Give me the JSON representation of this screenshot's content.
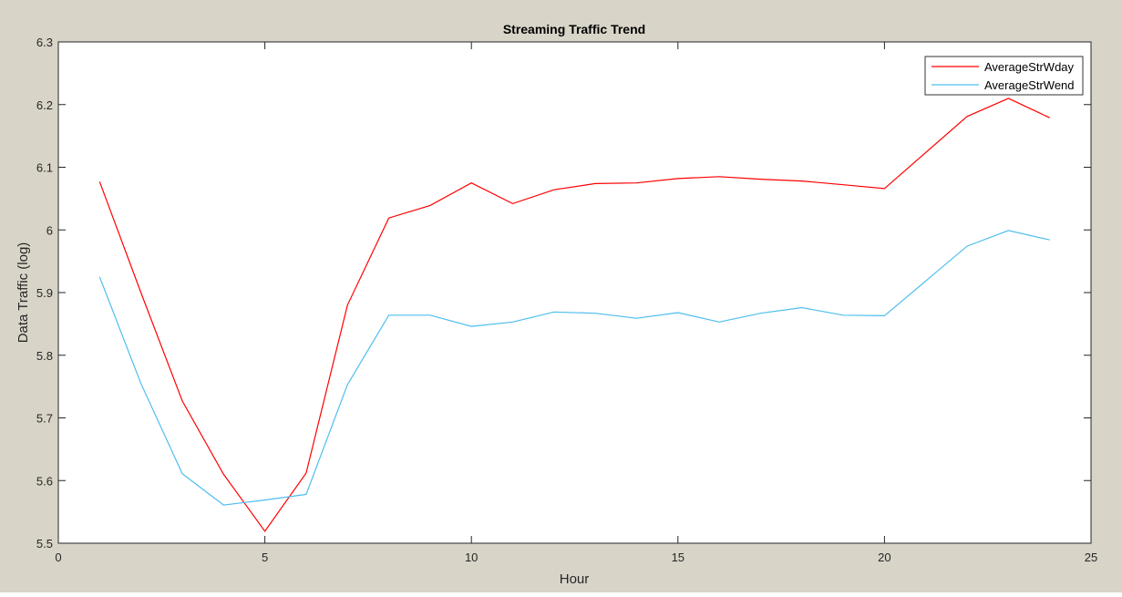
{
  "chart_data": {
    "type": "line",
    "title": "Streaming Traffic Trend",
    "xlabel": "Hour",
    "ylabel": "Data Traffic (log)",
    "xlim": [
      0,
      25
    ],
    "ylim": [
      5.5,
      6.3
    ],
    "xticks": [
      "0",
      "5",
      "10",
      "15",
      "20",
      "25"
    ],
    "yticks": [
      "5.5",
      "5.6",
      "5.7",
      "5.8",
      "5.9",
      "6",
      "6.1",
      "6.2",
      "6.3"
    ],
    "grid": false,
    "legend_position": "top-right",
    "series": [
      {
        "name": "AverageStrWday",
        "color": "#ff0000",
        "x": [
          1,
          2,
          3,
          4,
          5,
          6,
          7,
          8,
          9,
          10,
          11,
          12,
          13,
          14,
          15,
          16,
          17,
          18,
          19,
          20,
          22,
          23,
          24
        ],
        "values": [
          6.077,
          5.9,
          5.727,
          5.61,
          5.519,
          5.612,
          5.88,
          6.019,
          6.039,
          6.075,
          6.042,
          6.064,
          6.074,
          6.075,
          6.082,
          6.085,
          6.081,
          6.078,
          6.072,
          6.066,
          6.181,
          6.21,
          6.179
        ]
      },
      {
        "name": "AverageStrWend",
        "color": "#4dbeee",
        "x": [
          1,
          2,
          3,
          4,
          5,
          6,
          7,
          8,
          9,
          10,
          11,
          12,
          13,
          14,
          15,
          16,
          17,
          18,
          19,
          20,
          22,
          23,
          24
        ],
        "values": [
          5.925,
          5.755,
          5.611,
          5.561,
          5.569,
          5.578,
          5.753,
          5.864,
          5.864,
          5.846,
          5.853,
          5.869,
          5.867,
          5.859,
          5.868,
          5.853,
          5.867,
          5.876,
          5.864,
          5.863,
          5.974,
          5.999,
          5.984
        ]
      }
    ]
  }
}
